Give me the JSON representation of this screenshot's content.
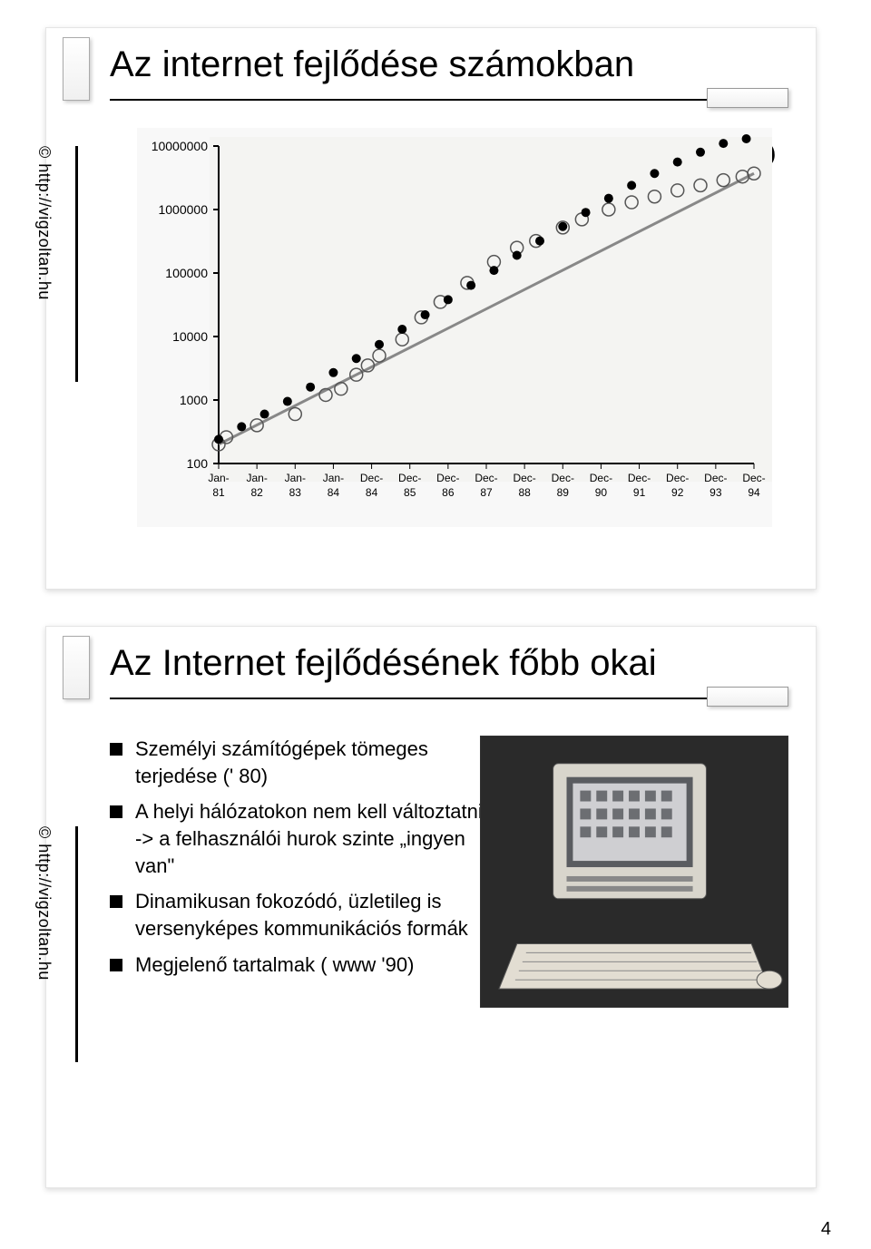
{
  "page_number": "4",
  "slide1": {
    "title": "Az internet fejlődése számokban",
    "copyright": "© http://vigzoltan.hu",
    "question_mark": "?",
    "chart": {
      "type": "scatter+line",
      "y_scale": "log",
      "y_ticks": [
        "100",
        "1000",
        "10000",
        "100000",
        "1000000",
        "10000000"
      ],
      "y_values": [
        100,
        1000,
        10000,
        100000,
        1000000,
        10000000
      ],
      "x_labels": [
        "Jan-81",
        "Jan-82",
        "Jan-83",
        "Jan-84",
        "Dec-84",
        "Dec-85",
        "Dec-86",
        "Dec-87",
        "Dec-88",
        "Dec-89",
        "Dec-90",
        "Dec-91",
        "Dec-92",
        "Dec-93",
        "Dec-94"
      ],
      "series_points": {
        "color": "#555555",
        "marker": "circle-open",
        "marker_size": 7,
        "values": [
          [
            0,
            200
          ],
          [
            0.2,
            260
          ],
          [
            1,
            400
          ],
          [
            2,
            600
          ],
          [
            2.8,
            1200
          ],
          [
            3.2,
            1500
          ],
          [
            3.6,
            2500
          ],
          [
            3.9,
            3500
          ],
          [
            4.2,
            5000
          ],
          [
            4.8,
            9000
          ],
          [
            5.3,
            20000
          ],
          [
            5.8,
            35000
          ],
          [
            6.5,
            70000
          ],
          [
            7.2,
            150000
          ],
          [
            7.8,
            250000
          ],
          [
            8.3,
            320000
          ],
          [
            9.0,
            520000
          ],
          [
            9.5,
            700000
          ],
          [
            10.2,
            1000000
          ],
          [
            10.8,
            1300000
          ],
          [
            11.4,
            1600000
          ],
          [
            12.0,
            2000000
          ],
          [
            12.6,
            2400000
          ],
          [
            13.2,
            2900000
          ],
          [
            13.7,
            3300000
          ],
          [
            14,
            3700000
          ]
        ]
      },
      "series_dots": {
        "color": "#000000",
        "marker": "circle-filled",
        "marker_size": 5,
        "values": [
          [
            0,
            240
          ],
          [
            0.6,
            380
          ],
          [
            1.2,
            600
          ],
          [
            1.8,
            950
          ],
          [
            2.4,
            1600
          ],
          [
            3.0,
            2700
          ],
          [
            3.6,
            4500
          ],
          [
            4.2,
            7500
          ],
          [
            4.8,
            13000
          ],
          [
            5.4,
            22000
          ],
          [
            6.0,
            38000
          ],
          [
            6.6,
            64000
          ],
          [
            7.2,
            110000
          ],
          [
            7.8,
            190000
          ],
          [
            8.4,
            320000
          ],
          [
            9.0,
            540000
          ],
          [
            9.6,
            900000
          ],
          [
            10.2,
            1500000
          ],
          [
            10.8,
            2400000
          ],
          [
            11.4,
            3700000
          ],
          [
            12.0,
            5600000
          ],
          [
            12.6,
            8000000
          ],
          [
            13.2,
            11000000
          ],
          [
            13.8,
            13000000
          ]
        ]
      },
      "trend_line": {
        "color": "#888888",
        "width": 3,
        "from": [
          0,
          200
        ],
        "to": [
          14,
          3700000
        ]
      },
      "axis_color": "#000000",
      "tick_fontsize": 14,
      "background": "#f8f8f8"
    }
  },
  "slide2": {
    "title": "Az Internet fejlődésének főbb okai",
    "copyright": "© http://vigzoltan.hu",
    "bullets": [
      "Személyi számítógépek tömeges terjedése (' 80)",
      "A helyi hálózatokon nem kell változtatni -> a felhasználói hurok szinte „ingyen van\"",
      "Dinamikusan fokozódó, üzletileg is versenyképes kommunikációs formák",
      "Megjelenő tartalmak ( www '90)"
    ],
    "image": {
      "semantic": "early-personal-computer-photo",
      "background": "#2a2a2a",
      "monitor_color": "#d8d5cc",
      "screen_color": "#cfcfd2",
      "keyboard_color": "#e2ddd2"
    }
  }
}
